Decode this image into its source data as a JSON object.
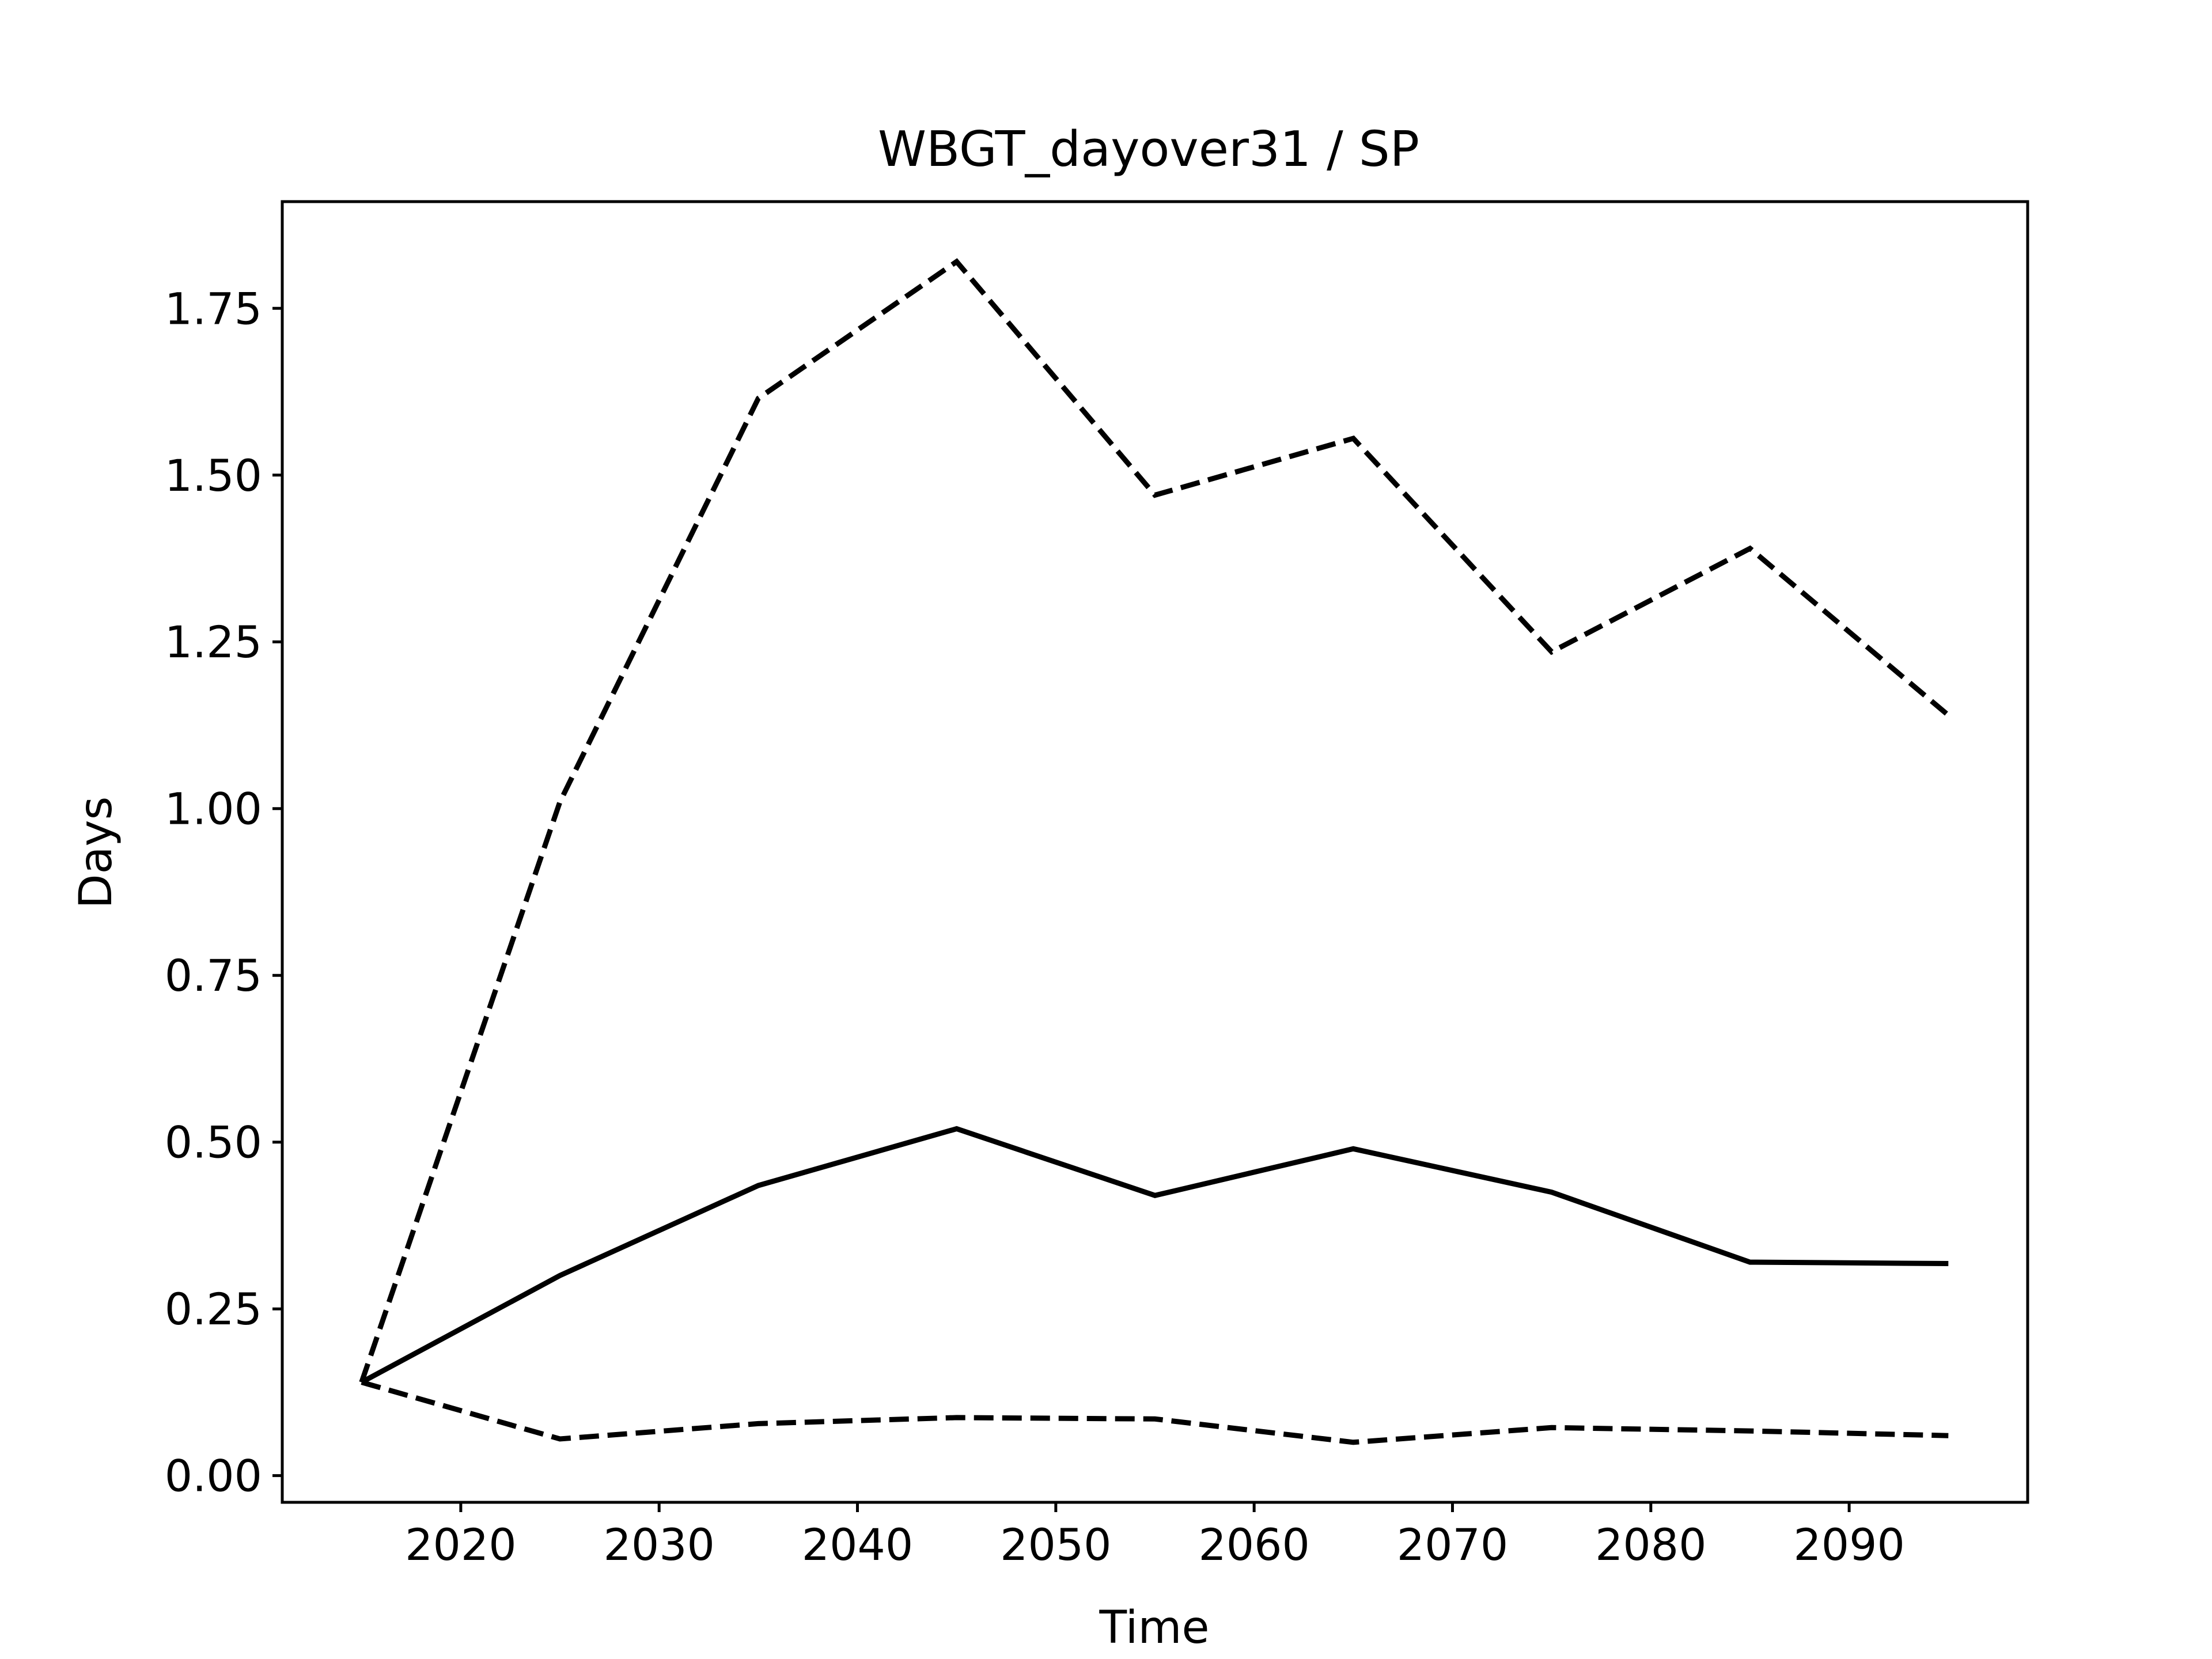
{
  "chart_data": {
    "type": "line",
    "title": "WBGT_dayover31 / SP",
    "xlabel": "Time",
    "ylabel": "Days",
    "x": [
      2015,
      2025,
      2035,
      2045,
      2055,
      2065,
      2075,
      2085,
      2095
    ],
    "xlim": [
      2011,
      2099
    ],
    "ylim": [
      -0.04,
      1.91
    ],
    "xticks": [
      2020,
      2030,
      2040,
      2050,
      2060,
      2070,
      2080,
      2090
    ],
    "xtick_labels": [
      "2020",
      "2030",
      "2040",
      "2050",
      "2060",
      "2070",
      "2080",
      "2090"
    ],
    "yticks": [
      0.0,
      0.25,
      0.5,
      0.75,
      1.0,
      1.25,
      1.5,
      1.75
    ],
    "ytick_labels": [
      "0.00",
      "0.25",
      "0.50",
      "0.75",
      "1.00",
      "1.25",
      "1.50",
      "1.75"
    ],
    "grid": false,
    "legend": "none",
    "series": [
      {
        "style": "solid",
        "color": "#000000",
        "values": [
          0.14,
          0.3,
          0.435,
          0.52,
          0.42,
          0.49,
          0.425,
          0.32,
          0.318
        ]
      },
      {
        "style": "dashed",
        "color": "#000000",
        "values": [
          0.14,
          1.01,
          1.615,
          1.82,
          1.47,
          1.555,
          1.235,
          1.39,
          1.14
        ]
      },
      {
        "style": "dashed",
        "color": "#000000",
        "values": [
          0.14,
          0.055,
          0.078,
          0.087,
          0.085,
          0.05,
          0.072,
          0.067,
          0.06
        ]
      }
    ]
  }
}
